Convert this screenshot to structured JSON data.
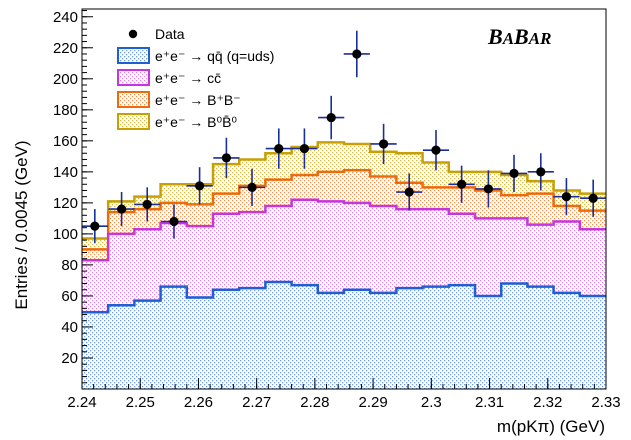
{
  "chart_data": {
    "type": "histogram",
    "xlabel": "m(pKπ) (GeV)",
    "ylabel": "Entries / 0.0045 (GeV)",
    "xlim": [
      2.24,
      2.33
    ],
    "ylim": [
      0,
      245
    ],
    "bin_width": 0.0045,
    "x_ticks": [
      2.24,
      2.25,
      2.26,
      2.27,
      2.28,
      2.29,
      2.3,
      2.31,
      2.32,
      2.33
    ],
    "x_tick_labels": [
      "2.24",
      "2.25",
      "2.26",
      "2.27",
      "2.28",
      "2.29",
      "2.3",
      "2.31",
      "2.32",
      "2.33"
    ],
    "y_ticks": [
      20,
      40,
      60,
      80,
      100,
      120,
      140,
      160,
      180,
      200,
      220,
      240
    ],
    "y_tick_labels": [
      "20",
      "40",
      "60",
      "80",
      "100",
      "120",
      "140",
      "160",
      "180",
      "200",
      "220",
      "240"
    ],
    "bin_edges": [
      2.24,
      2.2445,
      2.249,
      2.2535,
      2.258,
      2.2625,
      2.267,
      2.2715,
      2.276,
      2.2805,
      2.285,
      2.2895,
      2.294,
      2.2985,
      2.303,
      2.3075,
      2.312,
      2.3165,
      2.321,
      2.3255,
      2.33
    ],
    "stack_order": [
      "uds",
      "cc",
      "bpbm",
      "b0b0"
    ],
    "series": [
      {
        "key": "uds",
        "name": "e⁺e⁻ → qq̄ (q=uds)",
        "color": "#1f5fd0",
        "fill": "#a9c6ee",
        "cumulative": [
          49.5,
          54,
          57,
          66,
          59,
          64,
          65,
          69,
          67,
          62,
          64,
          62,
          65,
          66,
          67,
          60,
          68,
          66,
          62,
          60
        ]
      },
      {
        "key": "cc",
        "name": "e⁺e⁻ → cc̄",
        "color": "#c535e0",
        "fill": "#ebb4f2",
        "cumulative": [
          83,
          100,
          103,
          107,
          105,
          113,
          114,
          118,
          122,
          121,
          120,
          118,
          116,
          116,
          113,
          110,
          110,
          106,
          108,
          103
        ]
      },
      {
        "key": "bpbm",
        "name": "e⁺e⁻ → B⁺B⁻",
        "color": "#ee6a0e",
        "fill": "#f7b587",
        "cumulative": [
          90,
          114,
          116,
          120,
          119,
          126,
          131,
          135,
          138,
          140,
          141,
          137,
          133,
          130,
          130,
          128,
          125,
          126,
          118,
          115
        ]
      },
      {
        "key": "b0b0",
        "name": "e⁺e⁻ → B⁰B̄⁰",
        "color": "#c7a006",
        "fill": "#e4d17b",
        "cumulative": [
          97,
          121,
          124,
          132,
          132,
          145,
          148,
          152,
          156,
          159,
          158,
          153,
          152,
          146,
          140,
          140,
          138,
          134,
          128,
          126
        ]
      }
    ],
    "data_points": {
      "name": "Data",
      "x": [
        2.2422,
        2.2468,
        2.2512,
        2.2558,
        2.2602,
        2.2648,
        2.2692,
        2.2738,
        2.2782,
        2.2828,
        2.2872,
        2.2918,
        2.2962,
        2.3008,
        2.3052,
        2.3098,
        2.3142,
        2.3188,
        2.3232,
        2.3278
      ],
      "y": [
        105,
        116,
        119,
        108,
        131,
        149,
        130,
        155,
        155,
        175,
        216,
        158,
        127,
        154,
        132,
        129,
        139,
        140,
        124,
        123
      ],
      "yerr": [
        11,
        11,
        11,
        11,
        12,
        13,
        12,
        13,
        13,
        14,
        15,
        13,
        12,
        13,
        12,
        12,
        12,
        12,
        12,
        12
      ]
    },
    "legend": {
      "placement": "top-left",
      "entries": [
        {
          "key": "data",
          "label": "Data"
        },
        {
          "key": "uds",
          "label": "e⁺e⁻ → qq̄ (q=uds)"
        },
        {
          "key": "cc",
          "label": "e⁺e⁻ → cc̄"
        },
        {
          "key": "bpbm",
          "label": "e⁺e⁻ → B⁺B⁻"
        },
        {
          "key": "b0b0",
          "label": "e⁺e⁻ → B⁰B̄⁰"
        }
      ]
    },
    "logo_text": "BABAR"
  }
}
